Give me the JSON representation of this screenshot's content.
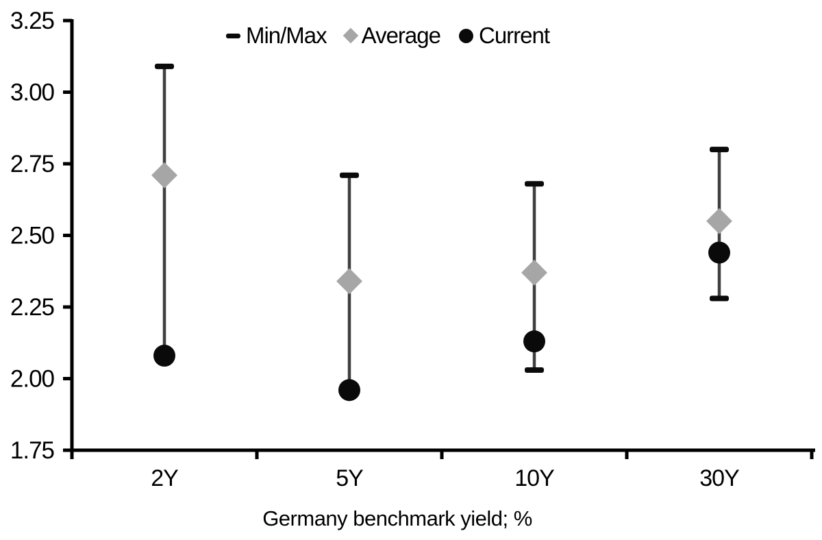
{
  "chart_data": {
    "type": "scatter",
    "subtype": "min-max-range-with-markers",
    "categories": [
      "2Y",
      "5Y",
      "10Y",
      "30Y"
    ],
    "series": [
      {
        "name": "Min/Max",
        "marker": "dash",
        "min": [
          2.08,
          1.96,
          2.03,
          2.28
        ],
        "max": [
          3.09,
          2.71,
          2.68,
          2.8
        ]
      },
      {
        "name": "Average",
        "marker": "diamond",
        "values": [
          2.71,
          2.34,
          2.37,
          2.55
        ]
      },
      {
        "name": "Current",
        "marker": "circle",
        "values": [
          2.08,
          1.96,
          2.13,
          2.44
        ]
      }
    ],
    "title": "",
    "xlabel": "Germany benchmark yield; %",
    "ylabel": "",
    "ylim": [
      1.75,
      3.25
    ],
    "ytick_step": 0.25,
    "ytick_labels": [
      "1.75",
      "2.00",
      "2.25",
      "2.50",
      "2.75",
      "3.00",
      "3.25"
    ],
    "grid": false,
    "legend_position": "top-center",
    "colors": {
      "background": "#ffffff",
      "axis": "#000000",
      "range_line": "#3f3f3f",
      "minmax_cap": "#0a0a0a",
      "average": "#a6a6a6",
      "current": "#0a0a0a",
      "text": "#000000"
    }
  }
}
